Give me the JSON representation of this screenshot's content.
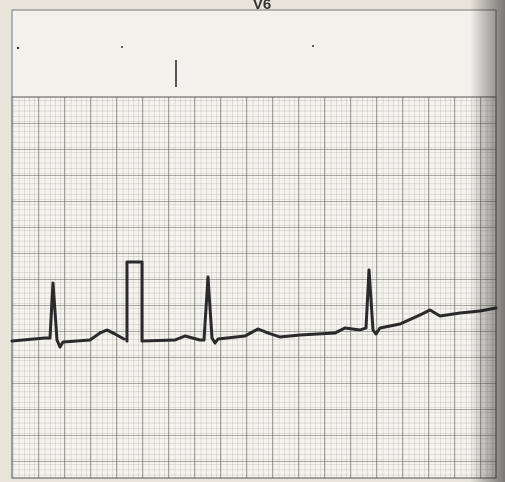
{
  "lead_label": "V6"
}
